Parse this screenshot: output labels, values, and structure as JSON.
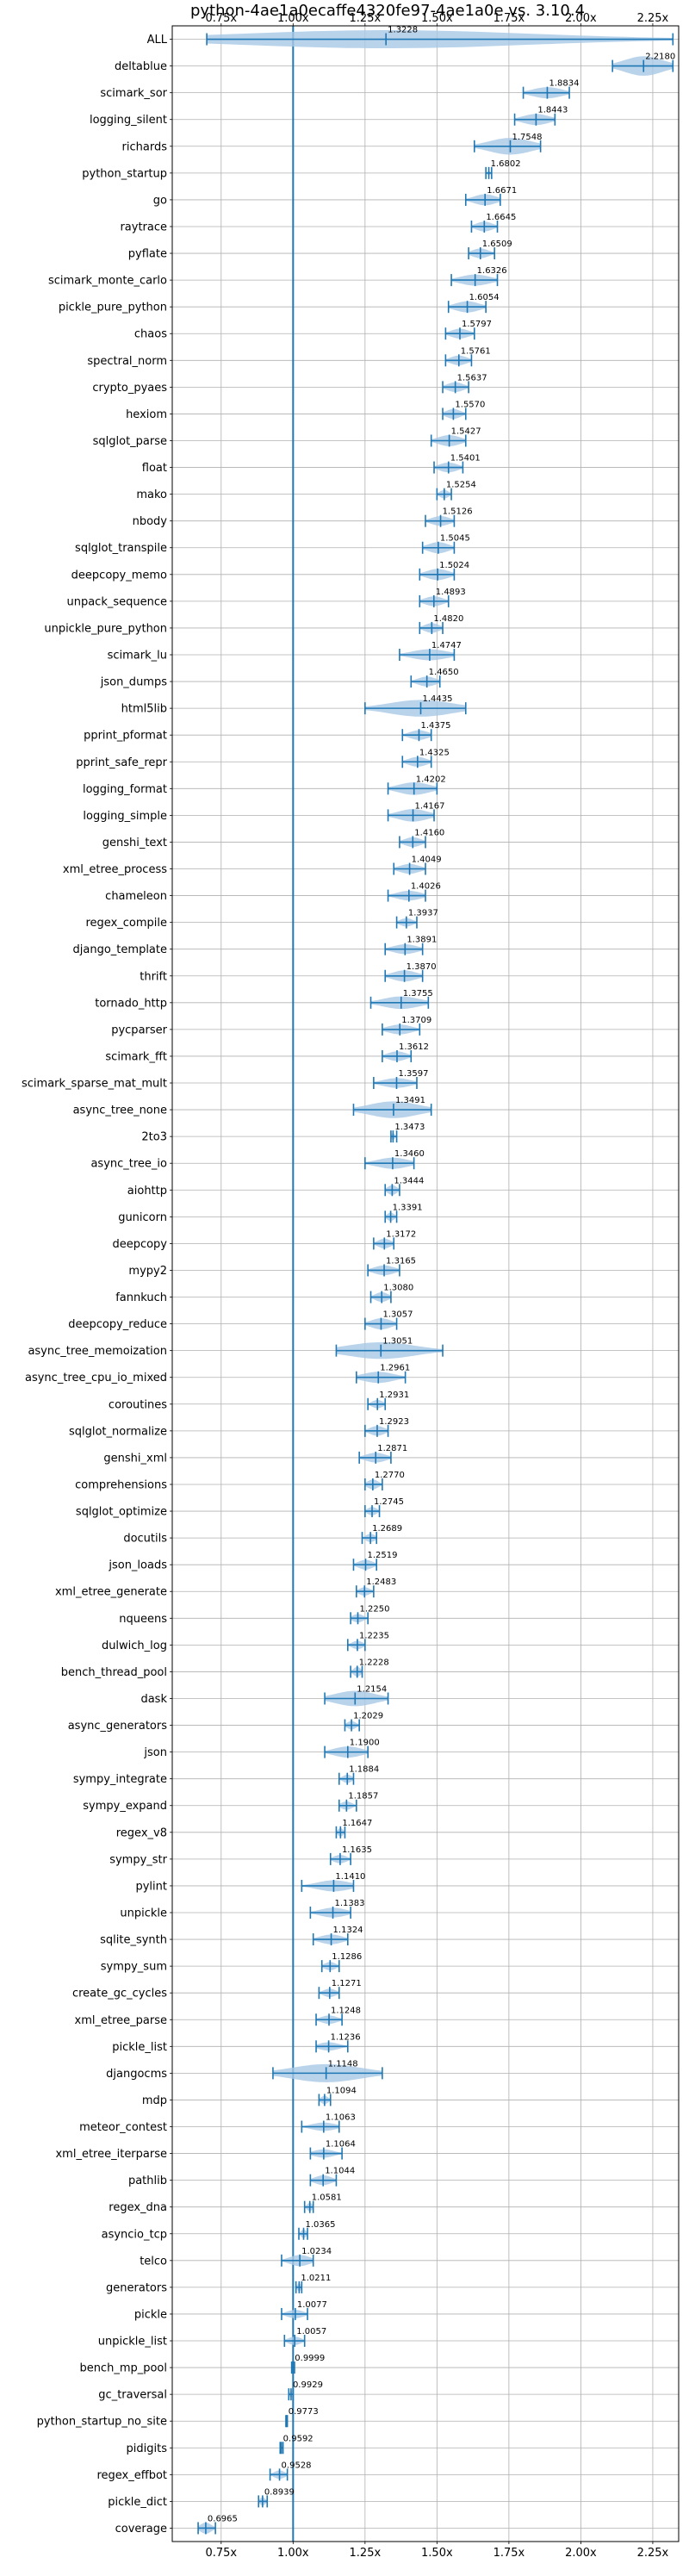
{
  "chart_data": {
    "type": "violin",
    "title": "python-4ae1a0ecaffe4320fe97-4ae1a0e vs. 3.10.4",
    "orientation": "horizontal",
    "xlim": [
      0.58,
      2.34
    ],
    "xticks": [
      0.75,
      1.0,
      1.25,
      1.5,
      1.75,
      2.0,
      2.25
    ],
    "xtick_labels": [
      "0.75x",
      "1.00x",
      "1.25x",
      "1.50x",
      "1.75x",
      "2.00x",
      "2.25x"
    ],
    "grid": true,
    "reference_line": 1.0,
    "colors": {
      "body": "#a8c8e6",
      "line": "#1f77b4"
    },
    "benchmarks": [
      {
        "name": "ALL",
        "value": 1.3228,
        "min": 0.7,
        "max": 2.32,
        "spread": 0.26
      },
      {
        "name": "deltablue",
        "value": 2.218,
        "min": 2.11,
        "max": 2.32,
        "spread": 0.28
      },
      {
        "name": "scimark_sor",
        "value": 1.8834,
        "min": 1.8,
        "max": 1.96,
        "spread": 0.16
      },
      {
        "name": "logging_silent",
        "value": 1.8443,
        "min": 1.77,
        "max": 1.91,
        "spread": 0.16
      },
      {
        "name": "richards",
        "value": 1.7548,
        "min": 1.63,
        "max": 1.86,
        "spread": 0.24
      },
      {
        "name": "python_startup",
        "value": 1.6802,
        "min": 1.67,
        "max": 1.69,
        "spread": 0.06
      },
      {
        "name": "go",
        "value": 1.6671,
        "min": 1.6,
        "max": 1.72,
        "spread": 0.16
      },
      {
        "name": "raytrace",
        "value": 1.6645,
        "min": 1.62,
        "max": 1.71,
        "spread": 0.14
      },
      {
        "name": "pyflate",
        "value": 1.6509,
        "min": 1.61,
        "max": 1.7,
        "spread": 0.14
      },
      {
        "name": "scimark_monte_carlo",
        "value": 1.6326,
        "min": 1.55,
        "max": 1.71,
        "spread": 0.16
      },
      {
        "name": "pickle_pure_python",
        "value": 1.6054,
        "min": 1.54,
        "max": 1.67,
        "spread": 0.16
      },
      {
        "name": "chaos",
        "value": 1.5797,
        "min": 1.53,
        "max": 1.63,
        "spread": 0.14
      },
      {
        "name": "spectral_norm",
        "value": 1.5761,
        "min": 1.53,
        "max": 1.62,
        "spread": 0.14
      },
      {
        "name": "crypto_pyaes",
        "value": 1.5637,
        "min": 1.52,
        "max": 1.61,
        "spread": 0.14
      },
      {
        "name": "hexiom",
        "value": 1.557,
        "min": 1.52,
        "max": 1.6,
        "spread": 0.14
      },
      {
        "name": "sqlglot_parse",
        "value": 1.5427,
        "min": 1.48,
        "max": 1.6,
        "spread": 0.16
      },
      {
        "name": "float",
        "value": 1.5401,
        "min": 1.49,
        "max": 1.59,
        "spread": 0.14
      },
      {
        "name": "mako",
        "value": 1.5254,
        "min": 1.5,
        "max": 1.55,
        "spread": 0.12
      },
      {
        "name": "nbody",
        "value": 1.5126,
        "min": 1.46,
        "max": 1.56,
        "spread": 0.14
      },
      {
        "name": "sqlglot_transpile",
        "value": 1.5045,
        "min": 1.45,
        "max": 1.56,
        "spread": 0.16
      },
      {
        "name": "deepcopy_memo",
        "value": 1.5024,
        "min": 1.44,
        "max": 1.56,
        "spread": 0.16
      },
      {
        "name": "unpack_sequence",
        "value": 1.4893,
        "min": 1.44,
        "max": 1.54,
        "spread": 0.14
      },
      {
        "name": "unpickle_pure_python",
        "value": 1.482,
        "min": 1.44,
        "max": 1.52,
        "spread": 0.14
      },
      {
        "name": "scimark_lu",
        "value": 1.4747,
        "min": 1.37,
        "max": 1.56,
        "spread": 0.16
      },
      {
        "name": "json_dumps",
        "value": 1.465,
        "min": 1.41,
        "max": 1.51,
        "spread": 0.14
      },
      {
        "name": "html5lib",
        "value": 1.4435,
        "min": 1.25,
        "max": 1.6,
        "spread": 0.24
      },
      {
        "name": "pprint_pformat",
        "value": 1.4375,
        "min": 1.38,
        "max": 1.48,
        "spread": 0.14
      },
      {
        "name": "pprint_safe_repr",
        "value": 1.4325,
        "min": 1.38,
        "max": 1.48,
        "spread": 0.14
      },
      {
        "name": "logging_format",
        "value": 1.4202,
        "min": 1.33,
        "max": 1.5,
        "spread": 0.18
      },
      {
        "name": "logging_simple",
        "value": 1.4167,
        "min": 1.33,
        "max": 1.49,
        "spread": 0.18
      },
      {
        "name": "genshi_text",
        "value": 1.416,
        "min": 1.37,
        "max": 1.46,
        "spread": 0.14
      },
      {
        "name": "xml_etree_process",
        "value": 1.4049,
        "min": 1.35,
        "max": 1.46,
        "spread": 0.14
      },
      {
        "name": "chameleon",
        "value": 1.4026,
        "min": 1.33,
        "max": 1.46,
        "spread": 0.14
      },
      {
        "name": "regex_compile",
        "value": 1.3937,
        "min": 1.36,
        "max": 1.43,
        "spread": 0.12
      },
      {
        "name": "django_template",
        "value": 1.3891,
        "min": 1.32,
        "max": 1.45,
        "spread": 0.14
      },
      {
        "name": "thrift",
        "value": 1.387,
        "min": 1.32,
        "max": 1.45,
        "spread": 0.16
      },
      {
        "name": "tornado_http",
        "value": 1.3755,
        "min": 1.27,
        "max": 1.47,
        "spread": 0.18
      },
      {
        "name": "pycparser",
        "value": 1.3709,
        "min": 1.31,
        "max": 1.44,
        "spread": 0.14
      },
      {
        "name": "scimark_fft",
        "value": 1.3612,
        "min": 1.31,
        "max": 1.41,
        "spread": 0.14
      },
      {
        "name": "scimark_sparse_mat_mult",
        "value": 1.3597,
        "min": 1.28,
        "max": 1.43,
        "spread": 0.14
      },
      {
        "name": "async_tree_none",
        "value": 1.3491,
        "min": 1.21,
        "max": 1.48,
        "spread": 0.24
      },
      {
        "name": "2to3",
        "value": 1.3473,
        "min": 1.34,
        "max": 1.36,
        "spread": 0.1
      },
      {
        "name": "async_tree_io",
        "value": 1.346,
        "min": 1.25,
        "max": 1.42,
        "spread": 0.16
      },
      {
        "name": "aiohttp",
        "value": 1.3444,
        "min": 1.32,
        "max": 1.37,
        "spread": 0.14
      },
      {
        "name": "gunicorn",
        "value": 1.3391,
        "min": 1.32,
        "max": 1.36,
        "spread": 0.12
      },
      {
        "name": "deepcopy",
        "value": 1.3172,
        "min": 1.28,
        "max": 1.35,
        "spread": 0.14
      },
      {
        "name": "mypy2",
        "value": 1.3165,
        "min": 1.26,
        "max": 1.37,
        "spread": 0.14
      },
      {
        "name": "fannkuch",
        "value": 1.308,
        "min": 1.27,
        "max": 1.34,
        "spread": 0.14
      },
      {
        "name": "deepcopy_reduce",
        "value": 1.3057,
        "min": 1.25,
        "max": 1.36,
        "spread": 0.16
      },
      {
        "name": "async_tree_memoization",
        "value": 1.3051,
        "min": 1.15,
        "max": 1.52,
        "spread": 0.24
      },
      {
        "name": "async_tree_cpu_io_mixed",
        "value": 1.2961,
        "min": 1.22,
        "max": 1.39,
        "spread": 0.16
      },
      {
        "name": "coroutines",
        "value": 1.2931,
        "min": 1.26,
        "max": 1.32,
        "spread": 0.12
      },
      {
        "name": "sqlglot_normalize",
        "value": 1.2923,
        "min": 1.25,
        "max": 1.33,
        "spread": 0.14
      },
      {
        "name": "genshi_xml",
        "value": 1.2871,
        "min": 1.23,
        "max": 1.34,
        "spread": 0.14
      },
      {
        "name": "comprehensions",
        "value": 1.277,
        "min": 1.25,
        "max": 1.31,
        "spread": 0.14
      },
      {
        "name": "sqlglot_optimize",
        "value": 1.2745,
        "min": 1.25,
        "max": 1.3,
        "spread": 0.12
      },
      {
        "name": "docutils",
        "value": 1.2689,
        "min": 1.24,
        "max": 1.29,
        "spread": 0.12
      },
      {
        "name": "json_loads",
        "value": 1.2519,
        "min": 1.21,
        "max": 1.29,
        "spread": 0.14
      },
      {
        "name": "xml_etree_generate",
        "value": 1.2483,
        "min": 1.22,
        "max": 1.28,
        "spread": 0.12
      },
      {
        "name": "nqueens",
        "value": 1.225,
        "min": 1.2,
        "max": 1.26,
        "spread": 0.12
      },
      {
        "name": "dulwich_log",
        "value": 1.2235,
        "min": 1.19,
        "max": 1.25,
        "spread": 0.12
      },
      {
        "name": "bench_thread_pool",
        "value": 1.2228,
        "min": 1.2,
        "max": 1.24,
        "spread": 0.14
      },
      {
        "name": "dask",
        "value": 1.2154,
        "min": 1.11,
        "max": 1.33,
        "spread": 0.22
      },
      {
        "name": "async_generators",
        "value": 1.2029,
        "min": 1.18,
        "max": 1.23,
        "spread": 0.12
      },
      {
        "name": "json",
        "value": 1.19,
        "min": 1.11,
        "max": 1.26,
        "spread": 0.16
      },
      {
        "name": "sympy_integrate",
        "value": 1.1884,
        "min": 1.16,
        "max": 1.21,
        "spread": 0.12
      },
      {
        "name": "sympy_expand",
        "value": 1.1857,
        "min": 1.16,
        "max": 1.22,
        "spread": 0.12
      },
      {
        "name": "regex_v8",
        "value": 1.1647,
        "min": 1.15,
        "max": 1.18,
        "spread": 0.12
      },
      {
        "name": "sympy_str",
        "value": 1.1635,
        "min": 1.13,
        "max": 1.2,
        "spread": 0.12
      },
      {
        "name": "pylint",
        "value": 1.141,
        "min": 1.03,
        "max": 1.21,
        "spread": 0.16
      },
      {
        "name": "unpickle",
        "value": 1.1383,
        "min": 1.06,
        "max": 1.2,
        "spread": 0.14
      },
      {
        "name": "sqlite_synth",
        "value": 1.1324,
        "min": 1.07,
        "max": 1.19,
        "spread": 0.14
      },
      {
        "name": "sympy_sum",
        "value": 1.1286,
        "min": 1.1,
        "max": 1.16,
        "spread": 0.12
      },
      {
        "name": "create_gc_cycles",
        "value": 1.1271,
        "min": 1.09,
        "max": 1.16,
        "spread": 0.12
      },
      {
        "name": "xml_etree_parse",
        "value": 1.1248,
        "min": 1.08,
        "max": 1.17,
        "spread": 0.12
      },
      {
        "name": "pickle_list",
        "value": 1.1236,
        "min": 1.08,
        "max": 1.19,
        "spread": 0.12
      },
      {
        "name": "djangocms",
        "value": 1.1148,
        "min": 0.93,
        "max": 1.31,
        "spread": 0.26
      },
      {
        "name": "mdp",
        "value": 1.1094,
        "min": 1.09,
        "max": 1.13,
        "spread": 0.12
      },
      {
        "name": "meteor_contest",
        "value": 1.1063,
        "min": 1.03,
        "max": 1.16,
        "spread": 0.12
      },
      {
        "name": "xml_etree_iterparse",
        "value": 1.1064,
        "min": 1.06,
        "max": 1.17,
        "spread": 0.12
      },
      {
        "name": "pathlib",
        "value": 1.1044,
        "min": 1.06,
        "max": 1.15,
        "spread": 0.14
      },
      {
        "name": "regex_dna",
        "value": 1.0581,
        "min": 1.04,
        "max": 1.07,
        "spread": 0.12
      },
      {
        "name": "asyncio_tcp",
        "value": 1.0365,
        "min": 1.02,
        "max": 1.05,
        "spread": 0.12
      },
      {
        "name": "telco",
        "value": 1.0234,
        "min": 0.96,
        "max": 1.07,
        "spread": 0.16
      },
      {
        "name": "generators",
        "value": 1.0211,
        "min": 1.01,
        "max": 1.03,
        "spread": 0.12
      },
      {
        "name": "pickle",
        "value": 1.0077,
        "min": 0.96,
        "max": 1.05,
        "spread": 0.12
      },
      {
        "name": "unpickle_list",
        "value": 1.0057,
        "min": 0.97,
        "max": 1.04,
        "spread": 0.12
      },
      {
        "name": "bench_mp_pool",
        "value": 0.9999,
        "min": 0.995,
        "max": 1.005,
        "spread": 0.06
      },
      {
        "name": "gc_traversal",
        "value": 0.9929,
        "min": 0.985,
        "max": 1.0,
        "spread": 0.1
      },
      {
        "name": "python_startup_no_site",
        "value": 0.9773,
        "min": 0.975,
        "max": 0.98,
        "spread": 0.06
      },
      {
        "name": "pidigits",
        "value": 0.9592,
        "min": 0.955,
        "max": 0.965,
        "spread": 0.06
      },
      {
        "name": "regex_effbot",
        "value": 0.9528,
        "min": 0.92,
        "max": 0.98,
        "spread": 0.12
      },
      {
        "name": "pickle_dict",
        "value": 0.8939,
        "min": 0.88,
        "max": 0.91,
        "spread": 0.12
      },
      {
        "name": "coverage",
        "value": 0.6965,
        "min": 0.67,
        "max": 0.73,
        "spread": 0.16
      }
    ]
  }
}
